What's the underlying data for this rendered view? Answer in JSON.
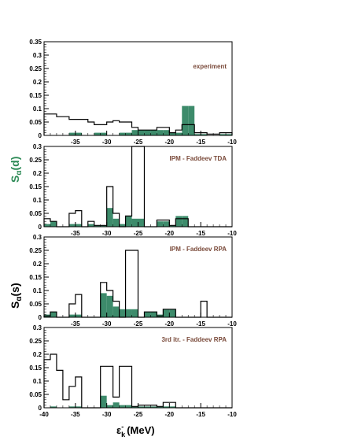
{
  "chart_data": {
    "type": "bar",
    "x_range": [
      -40,
      -10
    ],
    "bin_width": 1,
    "x_ticks": [
      "-40",
      "-35",
      "-30",
      "-25",
      "-20",
      "-15",
      "-10"
    ],
    "x_axis_label": "ε",
    "x_axis_label_sub": "k",
    "x_axis_label_sup": "-",
    "x_axis_label_unit": "(MeV)",
    "y_label_d": "S",
    "y_label_d_sub": "α",
    "y_label_d_arg": "(d)",
    "y_label_s": "S",
    "y_label_s_sub": "α",
    "y_label_s_arg": "(s)",
    "fill_color": "#3d8b6b",
    "panels": [
      {
        "label": "experiment",
        "ylim": [
          0,
          0.35
        ],
        "y_ticks": [
          "0",
          "0.05",
          "0.1",
          "0.15",
          "0.2",
          "0.25",
          "0.3",
          "0.35"
        ],
        "series": [
          {
            "style": "outline",
            "values": [
              0.08,
              0.08,
              0.07,
              0.07,
              0.06,
              0.06,
              0.06,
              0.05,
              0.04,
              0.04,
              0.05,
              0.055,
              0.05,
              0.05,
              0.03,
              0.02,
              0.02,
              0.02,
              0.03,
              0.03,
              0.01,
              0.02,
              0.04,
              0.04,
              0.01,
              0.01,
              0.005,
              0.005,
              0.01,
              0.01
            ]
          },
          {
            "style": "filled",
            "values": [
              0,
              0,
              0,
              0,
              0.01,
              0.01,
              0,
              0,
              0.01,
              0.01,
              0,
              0,
              0.01,
              0.01,
              0.02,
              0.02,
              0.02,
              0.02,
              0.02,
              0.02,
              0.01,
              0.01,
              0.11,
              0.11,
              0.005,
              0.005,
              0,
              0,
              0.005,
              0.005
            ]
          }
        ]
      },
      {
        "label": "IPM - Faddeev TDA",
        "ylim": [
          0,
          0.3
        ],
        "y_ticks": [
          "0",
          "0.05",
          "0.1",
          "0.15",
          "0.2",
          "0.25",
          "0.3"
        ],
        "series": [
          {
            "style": "outline",
            "values": [
              0.03,
              0.02,
              0,
              0,
              0.05,
              0.06,
              0,
              0.02,
              0.005,
              0.005,
              0.15,
              0.05,
              0,
              0.04,
              0.32,
              0.32,
              0,
              0,
              0.025,
              0.025,
              0.005,
              0.03,
              0.03,
              0,
              0,
              0,
              0,
              0,
              0,
              0
            ]
          },
          {
            "style": "filled",
            "values": [
              0.01,
              0.02,
              0,
              0,
              0.01,
              0.01,
              0,
              0.01,
              0.005,
              0.005,
              0.07,
              0.03,
              0.01,
              0.04,
              0.03,
              0.03,
              0,
              0,
              0.02,
              0.02,
              0.005,
              0.04,
              0.04,
              0,
              0,
              0,
              0,
              0,
              0,
              0
            ]
          }
        ]
      },
      {
        "label": "IPM - Faddeev RPA",
        "ylim": [
          0,
          0.3
        ],
        "y_ticks": [
          "0",
          "0.05",
          "0.1",
          "0.15",
          "0.2",
          "0.25",
          "0.3"
        ],
        "series": [
          {
            "style": "outline",
            "values": [
              0.005,
              0.02,
              0,
              0,
              0.05,
              0.085,
              0,
              0,
              0,
              0.13,
              0.1,
              0.06,
              0,
              0.25,
              0.25,
              0,
              0.02,
              0.02,
              0.005,
              0.03,
              0.03,
              0,
              0,
              0,
              0,
              0.06,
              0,
              0,
              0,
              0
            ]
          },
          {
            "style": "filled",
            "values": [
              0.01,
              0.02,
              0,
              0,
              0.01,
              0.01,
              0,
              0,
              0,
              0.09,
              0.08,
              0.04,
              0.03,
              0.03,
              0.03,
              0,
              0.02,
              0.02,
              0.01,
              0.03,
              0.03,
              0,
              0,
              0,
              0,
              0,
              0,
              0,
              0,
              0
            ]
          }
        ]
      },
      {
        "label": "3rd itr. - Faddeev RPA",
        "ylim": [
          0,
          0.3
        ],
        "y_ticks": [
          "0",
          "0.05",
          "0.1",
          "0.15",
          "0.2",
          "0.25",
          "0.3"
        ],
        "series": [
          {
            "style": "outline",
            "values": [
              0.18,
              0.2,
              0.14,
              0.03,
              0.08,
              0.115,
              0,
              0,
              0,
              0.155,
              0.155,
              0.04,
              0.155,
              0.155,
              0.005,
              0.01,
              0.01,
              0.01,
              0.005,
              0.02,
              0.02,
              0,
              0,
              0,
              0,
              0,
              0,
              0,
              0,
              0
            ]
          },
          {
            "style": "filled",
            "values": [
              0,
              0.005,
              0,
              0,
              0.005,
              0.005,
              0,
              0,
              0,
              0.045,
              0.01,
              0.02,
              0.01,
              0.01,
              0.005,
              0.005,
              0.005,
              0.005,
              0.005,
              0.005,
              0.005,
              0,
              0,
              0,
              0,
              0,
              0,
              0,
              0,
              0
            ]
          }
        ]
      }
    ]
  }
}
